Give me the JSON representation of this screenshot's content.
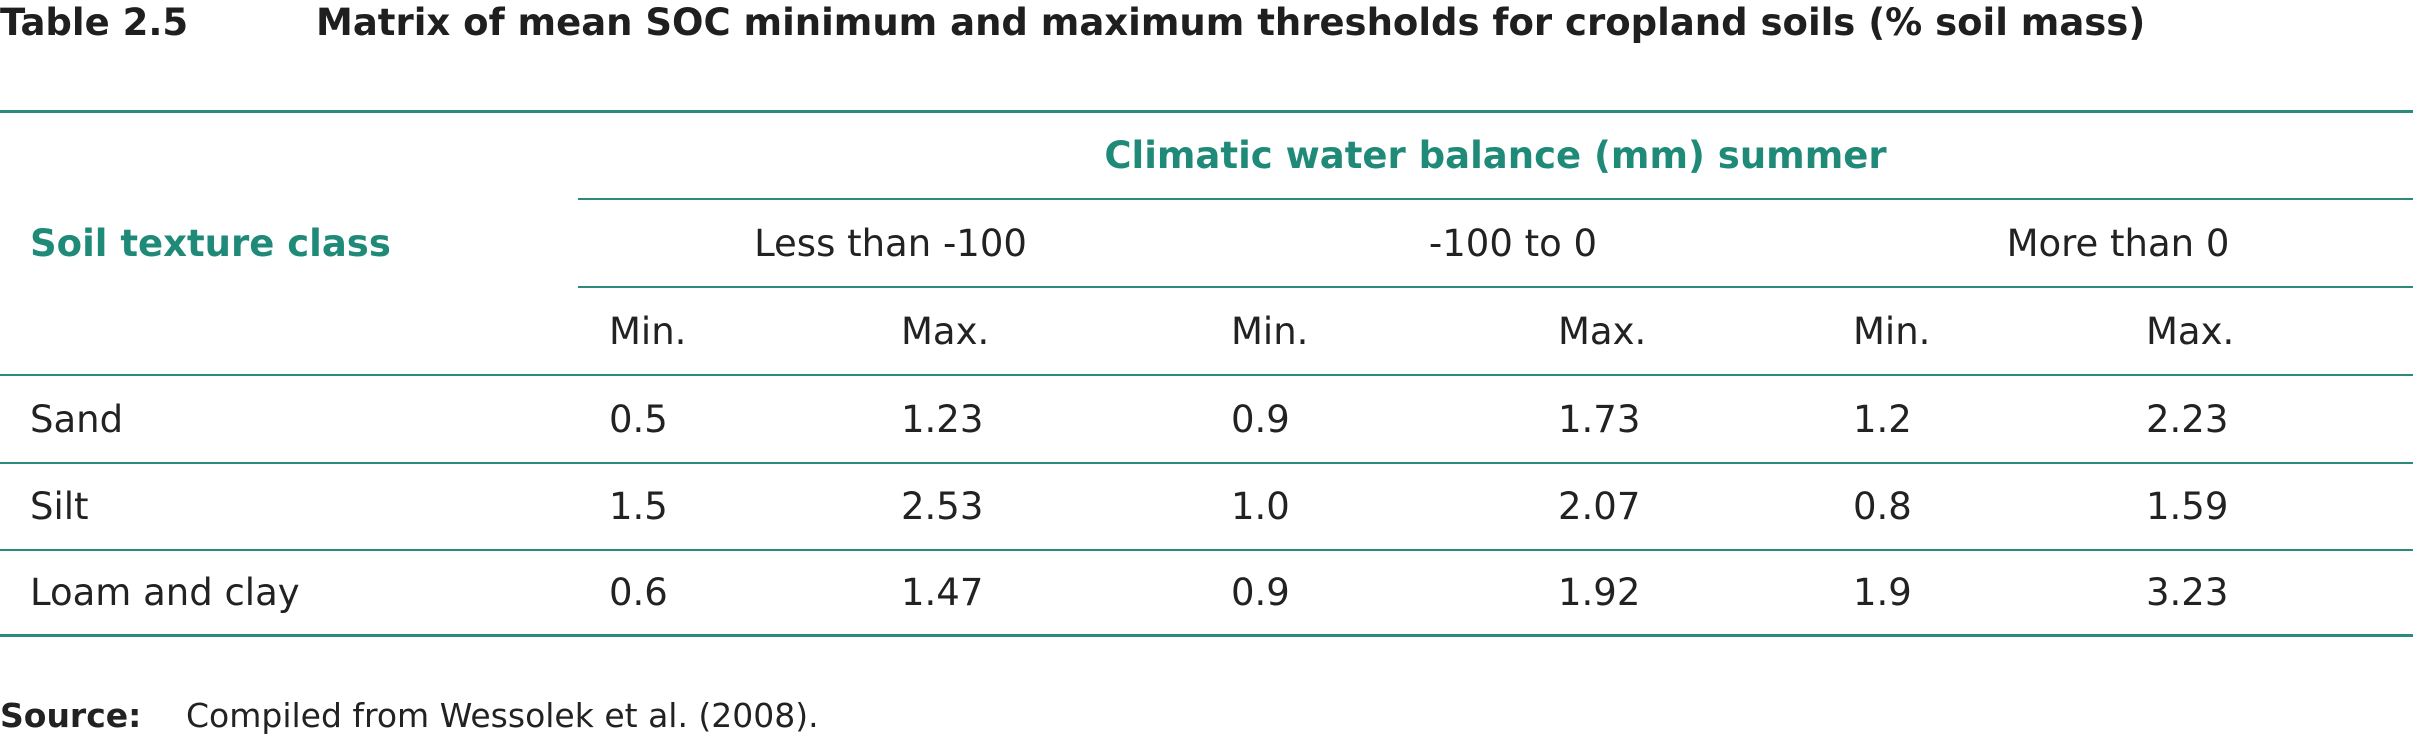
{
  "table": {
    "number": "Table 2.5",
    "title": "Matrix of mean SOC minimum and maximum thresholds for cropland soils (% soil mass)",
    "row_header": "Soil texture class",
    "group_header": "Climatic water balance (mm) summer",
    "ranges": [
      "Less than -100",
      "-100 to 0",
      "More than 0"
    ],
    "subheaders": [
      "Min.",
      "Max.",
      "Min.",
      "Max.",
      "Min.",
      "Max."
    ],
    "rows": [
      {
        "label": "Sand",
        "values": [
          "0.5",
          "1.23",
          "0.9",
          "1.73",
          "1.2",
          "2.23"
        ]
      },
      {
        "label": "Silt",
        "values": [
          "1.5",
          "2.53",
          "1.0",
          "2.07",
          "0.8",
          "1.59"
        ]
      },
      {
        "label": "Loam and clay",
        "values": [
          "0.6",
          "1.47",
          "0.9",
          "1.92",
          "1.9",
          "3.23"
        ]
      }
    ]
  },
  "source": {
    "label": "Source:",
    "text": "Compiled from Wessolek et al. (2008)."
  }
}
